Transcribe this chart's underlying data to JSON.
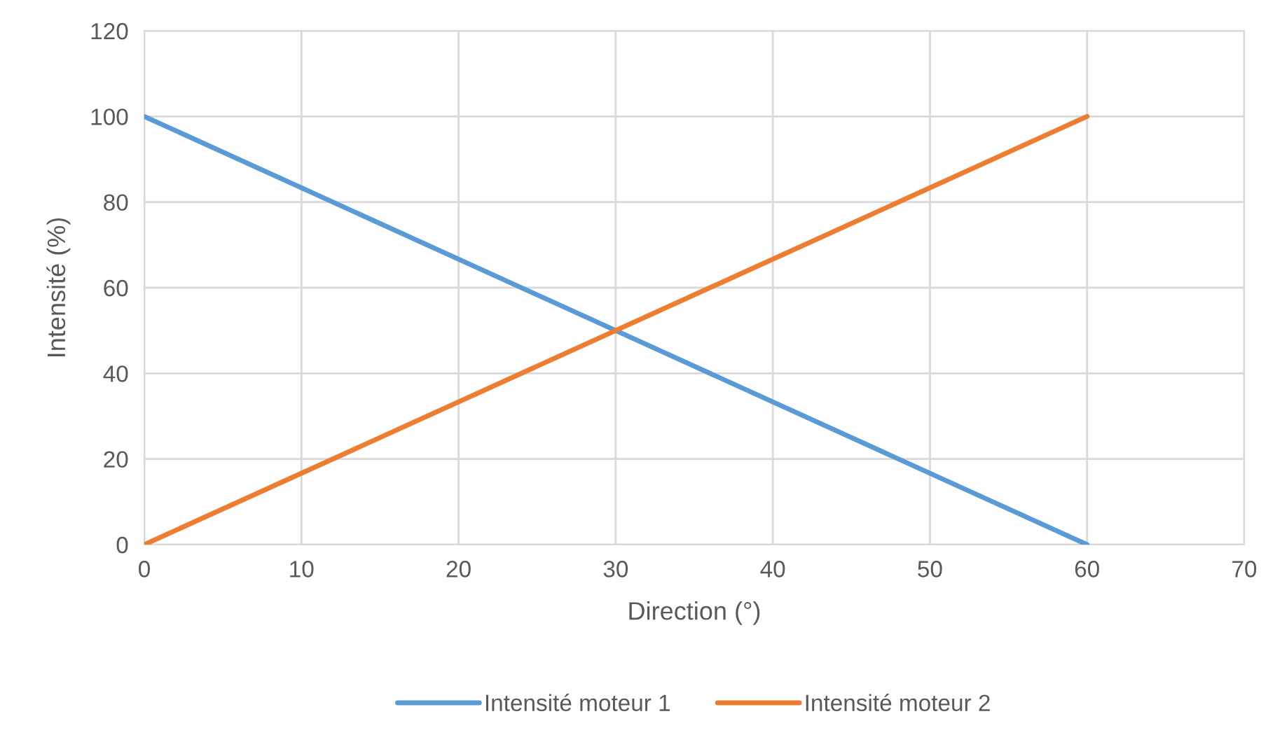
{
  "chart_data": {
    "type": "line",
    "xlabel": "Direction (°)",
    "ylabel": "Intensité (%)",
    "xlim": [
      0,
      70
    ],
    "xticks": [
      0,
      10,
      20,
      30,
      40,
      50,
      60,
      70
    ],
    "ylim": [
      0,
      120
    ],
    "yticks": [
      0,
      20,
      40,
      60,
      80,
      100,
      120
    ],
    "grid": true,
    "legend": "bottom",
    "marker": "none",
    "line_style": "solid",
    "series": [
      {
        "name": "Intensité moteur 1",
        "color": "#5b9bd5",
        "x": [
          0,
          30,
          60
        ],
        "values": [
          100,
          50,
          0
        ]
      },
      {
        "name": "Intensité moteur 2",
        "color": "#ed7d31",
        "x": [
          0,
          30,
          60
        ],
        "values": [
          0,
          50,
          100
        ]
      }
    ]
  }
}
